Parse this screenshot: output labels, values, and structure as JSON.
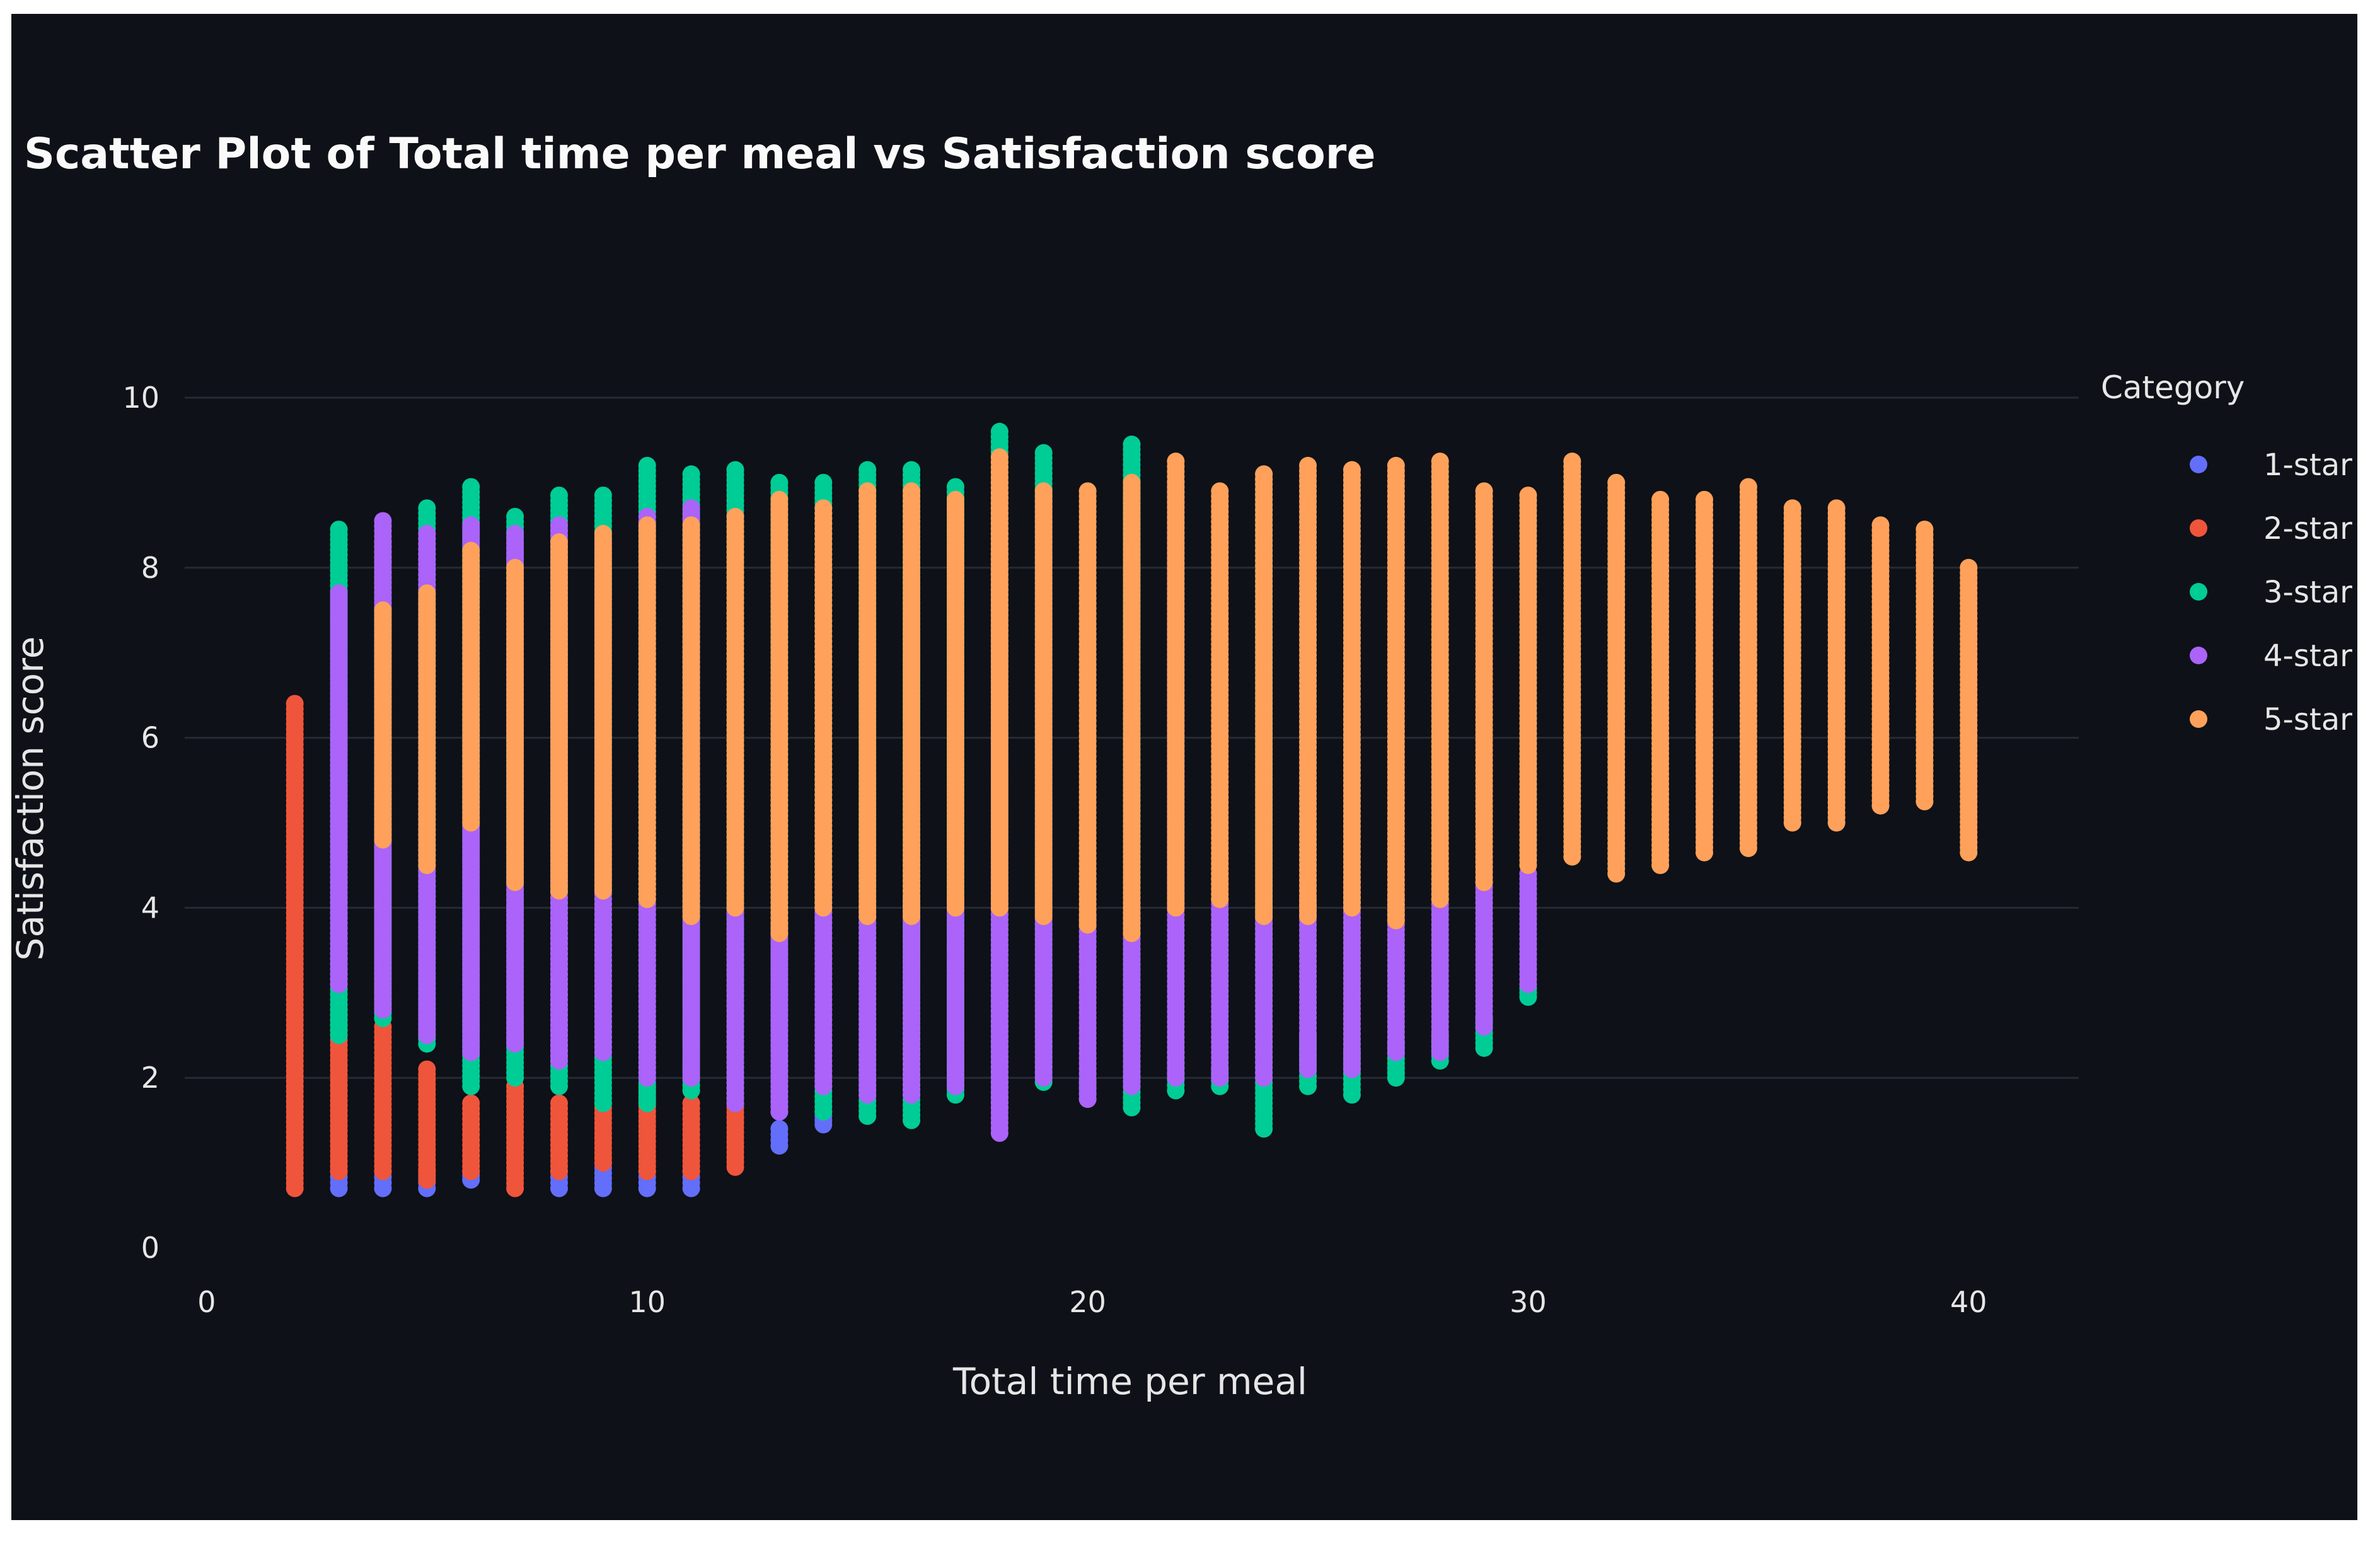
{
  "chart_data": {
    "type": "scatter",
    "title": "Scatter Plot of Total time per meal vs Satisfaction score",
    "xlabel": "Total time per meal",
    "ylabel": "Satisfaction score",
    "xlim": [
      -0.5,
      42.5
    ],
    "ylim": [
      0,
      10.4
    ],
    "x_ticks": [
      0,
      10,
      20,
      30,
      40
    ],
    "y_ticks": [
      0,
      2,
      4,
      6,
      8,
      10
    ],
    "grid": "horizontal",
    "legend_title": "Category",
    "legend_position": "right",
    "background_color": "#0e1117",
    "series": [
      {
        "name": "1-star",
        "color": "#636efa",
        "columns": [
          {
            "x": 3,
            "min": 0.7,
            "max": 0.9
          },
          {
            "x": 4,
            "min": 0.7,
            "max": 0.9
          },
          {
            "x": 5,
            "min": 0.7,
            "max": 0.9
          },
          {
            "x": 6,
            "min": 0.8,
            "max": 0.9
          },
          {
            "x": 8,
            "min": 0.7,
            "max": 0.9
          },
          {
            "x": 9,
            "min": 0.7,
            "max": 1.0
          },
          {
            "x": 10,
            "min": 0.7,
            "max": 0.9
          },
          {
            "x": 11,
            "min": 0.7,
            "max": 0.9
          },
          {
            "x": 13,
            "min": 1.2,
            "max": 1.4
          },
          {
            "x": 14,
            "min": 1.45,
            "max": 1.6
          }
        ]
      },
      {
        "name": "2-star",
        "color": "#ef553b",
        "columns": [
          {
            "x": 2,
            "min": 0.7,
            "max": 6.4
          },
          {
            "x": 3,
            "min": 0.9,
            "max": 2.8
          },
          {
            "x": 4,
            "min": 0.9,
            "max": 2.6
          },
          {
            "x": 5,
            "min": 0.8,
            "max": 2.1
          },
          {
            "x": 6,
            "min": 0.9,
            "max": 1.7
          },
          {
            "x": 7,
            "min": 0.7,
            "max": 1.9
          },
          {
            "x": 8,
            "min": 0.9,
            "max": 1.7
          },
          {
            "x": 9,
            "min": 1.0,
            "max": 1.7
          },
          {
            "x": 10,
            "min": 0.9,
            "max": 1.9
          },
          {
            "x": 11,
            "min": 0.9,
            "max": 1.7
          },
          {
            "x": 12,
            "min": 0.95,
            "max": 1.65
          }
        ]
      },
      {
        "name": "3-star",
        "color": "#00cc96",
        "columns": [
          {
            "x": 3,
            "min": 2.5,
            "max": 8.45
          },
          {
            "x": 4,
            "min": 2.7,
            "max": 8.3
          },
          {
            "x": 5,
            "min": 2.4,
            "max": 8.7
          },
          {
            "x": 6,
            "min": 1.9,
            "max": 8.95
          },
          {
            "x": 7,
            "min": 2.0,
            "max": 8.6
          },
          {
            "x": 8,
            "min": 1.9,
            "max": 8.85
          },
          {
            "x": 9,
            "min": 1.7,
            "max": 8.85
          },
          {
            "x": 10,
            "min": 1.7,
            "max": 9.2
          },
          {
            "x": 11,
            "min": 1.85,
            "max": 9.1
          },
          {
            "x": 12,
            "min": 1.7,
            "max": 9.15
          },
          {
            "x": 13,
            "min": 1.6,
            "max": 9.0
          },
          {
            "x": 14,
            "min": 1.6,
            "max": 9.0
          },
          {
            "x": 15,
            "min": 1.55,
            "max": 9.15
          },
          {
            "x": 16,
            "min": 1.5,
            "max": 9.15
          },
          {
            "x": 17,
            "min": 1.8,
            "max": 8.95
          },
          {
            "x": 18,
            "min": 1.65,
            "max": 9.6
          },
          {
            "x": 19,
            "min": 1.95,
            "max": 9.35
          },
          {
            "x": 20,
            "min": 1.75,
            "max": 1.95
          },
          {
            "x": 21,
            "min": 1.65,
            "max": 9.45
          },
          {
            "x": 22,
            "min": 1.85,
            "max": 2.3
          },
          {
            "x": 23,
            "min": 1.9,
            "max": 2.1
          },
          {
            "x": 24,
            "min": 1.4,
            "max": 9.1
          },
          {
            "x": 25,
            "min": 1.9,
            "max": 2.5
          },
          {
            "x": 26,
            "min": 1.8,
            "max": 2.3
          },
          {
            "x": 27,
            "min": 2.0,
            "max": 2.4
          },
          {
            "x": 28,
            "min": 2.2,
            "max": 2.5
          },
          {
            "x": 29,
            "min": 2.35,
            "max": 2.7
          },
          {
            "x": 30,
            "min": 2.95,
            "max": 3.05
          }
        ]
      },
      {
        "name": "4-star",
        "color": "#ab63fa",
        "columns": [
          {
            "x": 3,
            "min": 3.1,
            "max": 7.7
          },
          {
            "x": 4,
            "min": 2.8,
            "max": 8.55
          },
          {
            "x": 5,
            "min": 2.5,
            "max": 8.4
          },
          {
            "x": 6,
            "min": 2.3,
            "max": 8.5
          },
          {
            "x": 7,
            "min": 2.4,
            "max": 8.4
          },
          {
            "x": 8,
            "min": 2.2,
            "max": 8.5
          },
          {
            "x": 9,
            "min": 2.3,
            "max": 8.3
          },
          {
            "x": 10,
            "min": 2.0,
            "max": 8.6
          },
          {
            "x": 11,
            "min": 2.0,
            "max": 8.7
          },
          {
            "x": 12,
            "min": 1.7,
            "max": 4.0
          },
          {
            "x": 13,
            "min": 1.6,
            "max": 3.8
          },
          {
            "x": 14,
            "min": 1.9,
            "max": 4.3
          },
          {
            "x": 15,
            "min": 1.8,
            "max": 4.0
          },
          {
            "x": 16,
            "min": 1.8,
            "max": 4.1
          },
          {
            "x": 17,
            "min": 1.9,
            "max": 4.1
          },
          {
            "x": 18,
            "min": 1.35,
            "max": 9.0
          },
          {
            "x": 19,
            "min": 2.0,
            "max": 8.9
          },
          {
            "x": 20,
            "min": 1.75,
            "max": 3.9
          },
          {
            "x": 21,
            "min": 1.9,
            "max": 4.0
          },
          {
            "x": 22,
            "min": 2.0,
            "max": 9.0
          },
          {
            "x": 23,
            "min": 2.0,
            "max": 4.1
          },
          {
            "x": 24,
            "min": 2.0,
            "max": 4.0
          },
          {
            "x": 25,
            "min": 2.1,
            "max": 4.1
          },
          {
            "x": 26,
            "min": 2.1,
            "max": 4.3
          },
          {
            "x": 27,
            "min": 2.3,
            "max": 4.1
          },
          {
            "x": 28,
            "min": 2.3,
            "max": 4.1
          },
          {
            "x": 29,
            "min": 2.6,
            "max": 4.3
          },
          {
            "x": 30,
            "min": 3.1,
            "max": 4.4
          }
        ]
      },
      {
        "name": "5-star",
        "color": "#ffa15a",
        "columns": [
          {
            "x": 4,
            "min": 4.8,
            "max": 7.5
          },
          {
            "x": 5,
            "min": 4.5,
            "max": 7.7
          },
          {
            "x": 6,
            "min": 5.0,
            "max": 8.2
          },
          {
            "x": 7,
            "min": 4.3,
            "max": 8.0
          },
          {
            "x": 8,
            "min": 4.2,
            "max": 8.3
          },
          {
            "x": 9,
            "min": 4.2,
            "max": 8.4
          },
          {
            "x": 10,
            "min": 4.1,
            "max": 8.5
          },
          {
            "x": 11,
            "min": 3.9,
            "max": 8.5
          },
          {
            "x": 12,
            "min": 4.0,
            "max": 8.6
          },
          {
            "x": 13,
            "min": 3.7,
            "max": 8.8
          },
          {
            "x": 14,
            "min": 4.0,
            "max": 8.7
          },
          {
            "x": 15,
            "min": 3.9,
            "max": 8.9
          },
          {
            "x": 16,
            "min": 3.9,
            "max": 8.9
          },
          {
            "x": 17,
            "min": 4.0,
            "max": 8.8
          },
          {
            "x": 18,
            "min": 4.0,
            "max": 9.3
          },
          {
            "x": 19,
            "min": 3.9,
            "max": 8.9
          },
          {
            "x": 20,
            "min": 3.8,
            "max": 8.9
          },
          {
            "x": 21,
            "min": 3.7,
            "max": 9.0
          },
          {
            "x": 22,
            "min": 4.0,
            "max": 9.25
          },
          {
            "x": 23,
            "min": 4.1,
            "max": 8.9
          },
          {
            "x": 24,
            "min": 3.9,
            "max": 9.1
          },
          {
            "x": 25,
            "min": 3.9,
            "max": 9.2
          },
          {
            "x": 26,
            "min": 4.0,
            "max": 9.15
          },
          {
            "x": 27,
            "min": 3.85,
            "max": 9.2
          },
          {
            "x": 28,
            "min": 4.1,
            "max": 9.25
          },
          {
            "x": 29,
            "min": 4.3,
            "max": 8.9
          },
          {
            "x": 30,
            "min": 4.5,
            "max": 8.85
          },
          {
            "x": 31,
            "min": 4.6,
            "max": 9.25
          },
          {
            "x": 32,
            "min": 4.4,
            "max": 9.0
          },
          {
            "x": 33,
            "min": 4.5,
            "max": 8.8
          },
          {
            "x": 34,
            "min": 4.65,
            "max": 8.8
          },
          {
            "x": 35,
            "min": 4.7,
            "max": 8.95
          },
          {
            "x": 36,
            "min": 5.0,
            "max": 8.7
          },
          {
            "x": 37,
            "min": 5.0,
            "max": 8.7
          },
          {
            "x": 38,
            "min": 5.2,
            "max": 8.5
          },
          {
            "x": 39,
            "min": 5.25,
            "max": 8.45
          },
          {
            "x": 40,
            "min": 4.65,
            "max": 8.0
          }
        ]
      }
    ]
  }
}
